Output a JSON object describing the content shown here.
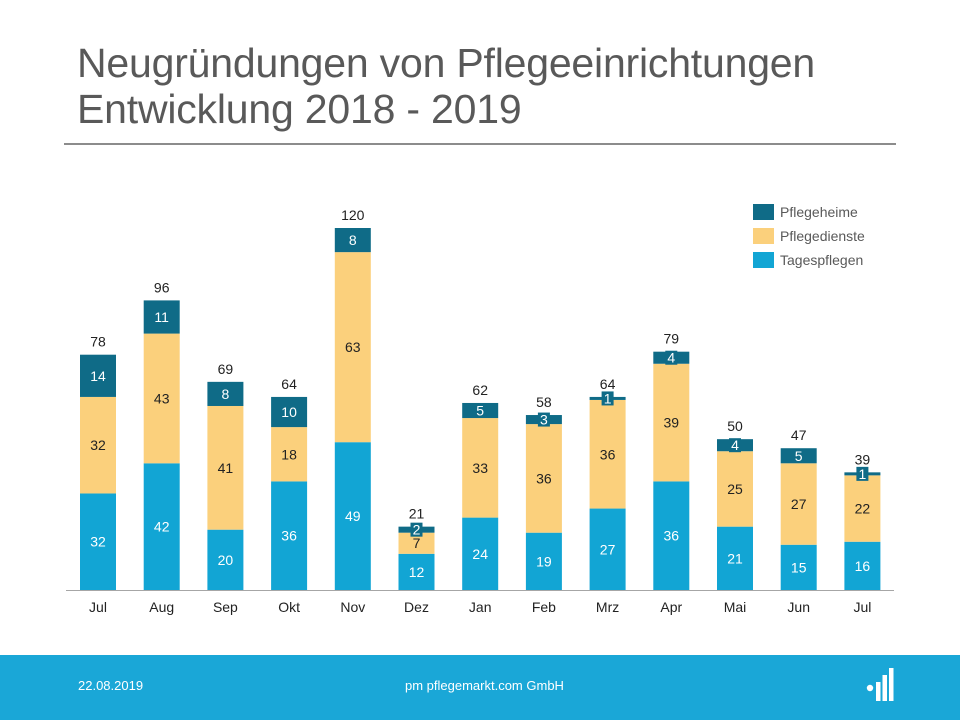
{
  "header": {
    "title_line1": "Neugründungen von Pflegeeinrichtungen",
    "title_line2": "Entwicklung 2018 - 2019"
  },
  "footer": {
    "date": "22.08.2019",
    "company": "pm pflegemarkt.com GmbH"
  },
  "colors": {
    "Pflegeheime": "#0f6b87",
    "Pflegedienste": "#fbd07c",
    "Tagespflegen": "#12a5d4",
    "footer": "#1aa7d7"
  },
  "chart_data": {
    "type": "bar",
    "stacked": true,
    "categories": [
      "Jul",
      "Aug",
      "Sep",
      "Okt",
      "Nov",
      "Dez",
      "Jan",
      "Feb",
      "Mrz",
      "Apr",
      "Mai",
      "Jun",
      "Jul"
    ],
    "series": [
      {
        "name": "Tagespflegen",
        "values": [
          32,
          42,
          20,
          36,
          49,
          12,
          24,
          19,
          27,
          36,
          21,
          15,
          16
        ]
      },
      {
        "name": "Pflegedienste",
        "values": [
          32,
          43,
          41,
          18,
          63,
          7,
          33,
          36,
          36,
          39,
          25,
          27,
          22
        ]
      },
      {
        "name": "Pflegeheime",
        "values": [
          14,
          11,
          8,
          10,
          8,
          2,
          5,
          3,
          1,
          4,
          4,
          5,
          1
        ]
      }
    ],
    "totals": [
      78,
      96,
      69,
      64,
      120,
      21,
      62,
      58,
      64,
      79,
      50,
      47,
      39
    ],
    "legend": [
      "Pflegeheime",
      "Pflegedienste",
      "Tagespflegen"
    ],
    "legend_position": "top-right",
    "ylim": [
      0,
      120
    ],
    "grid": false
  }
}
